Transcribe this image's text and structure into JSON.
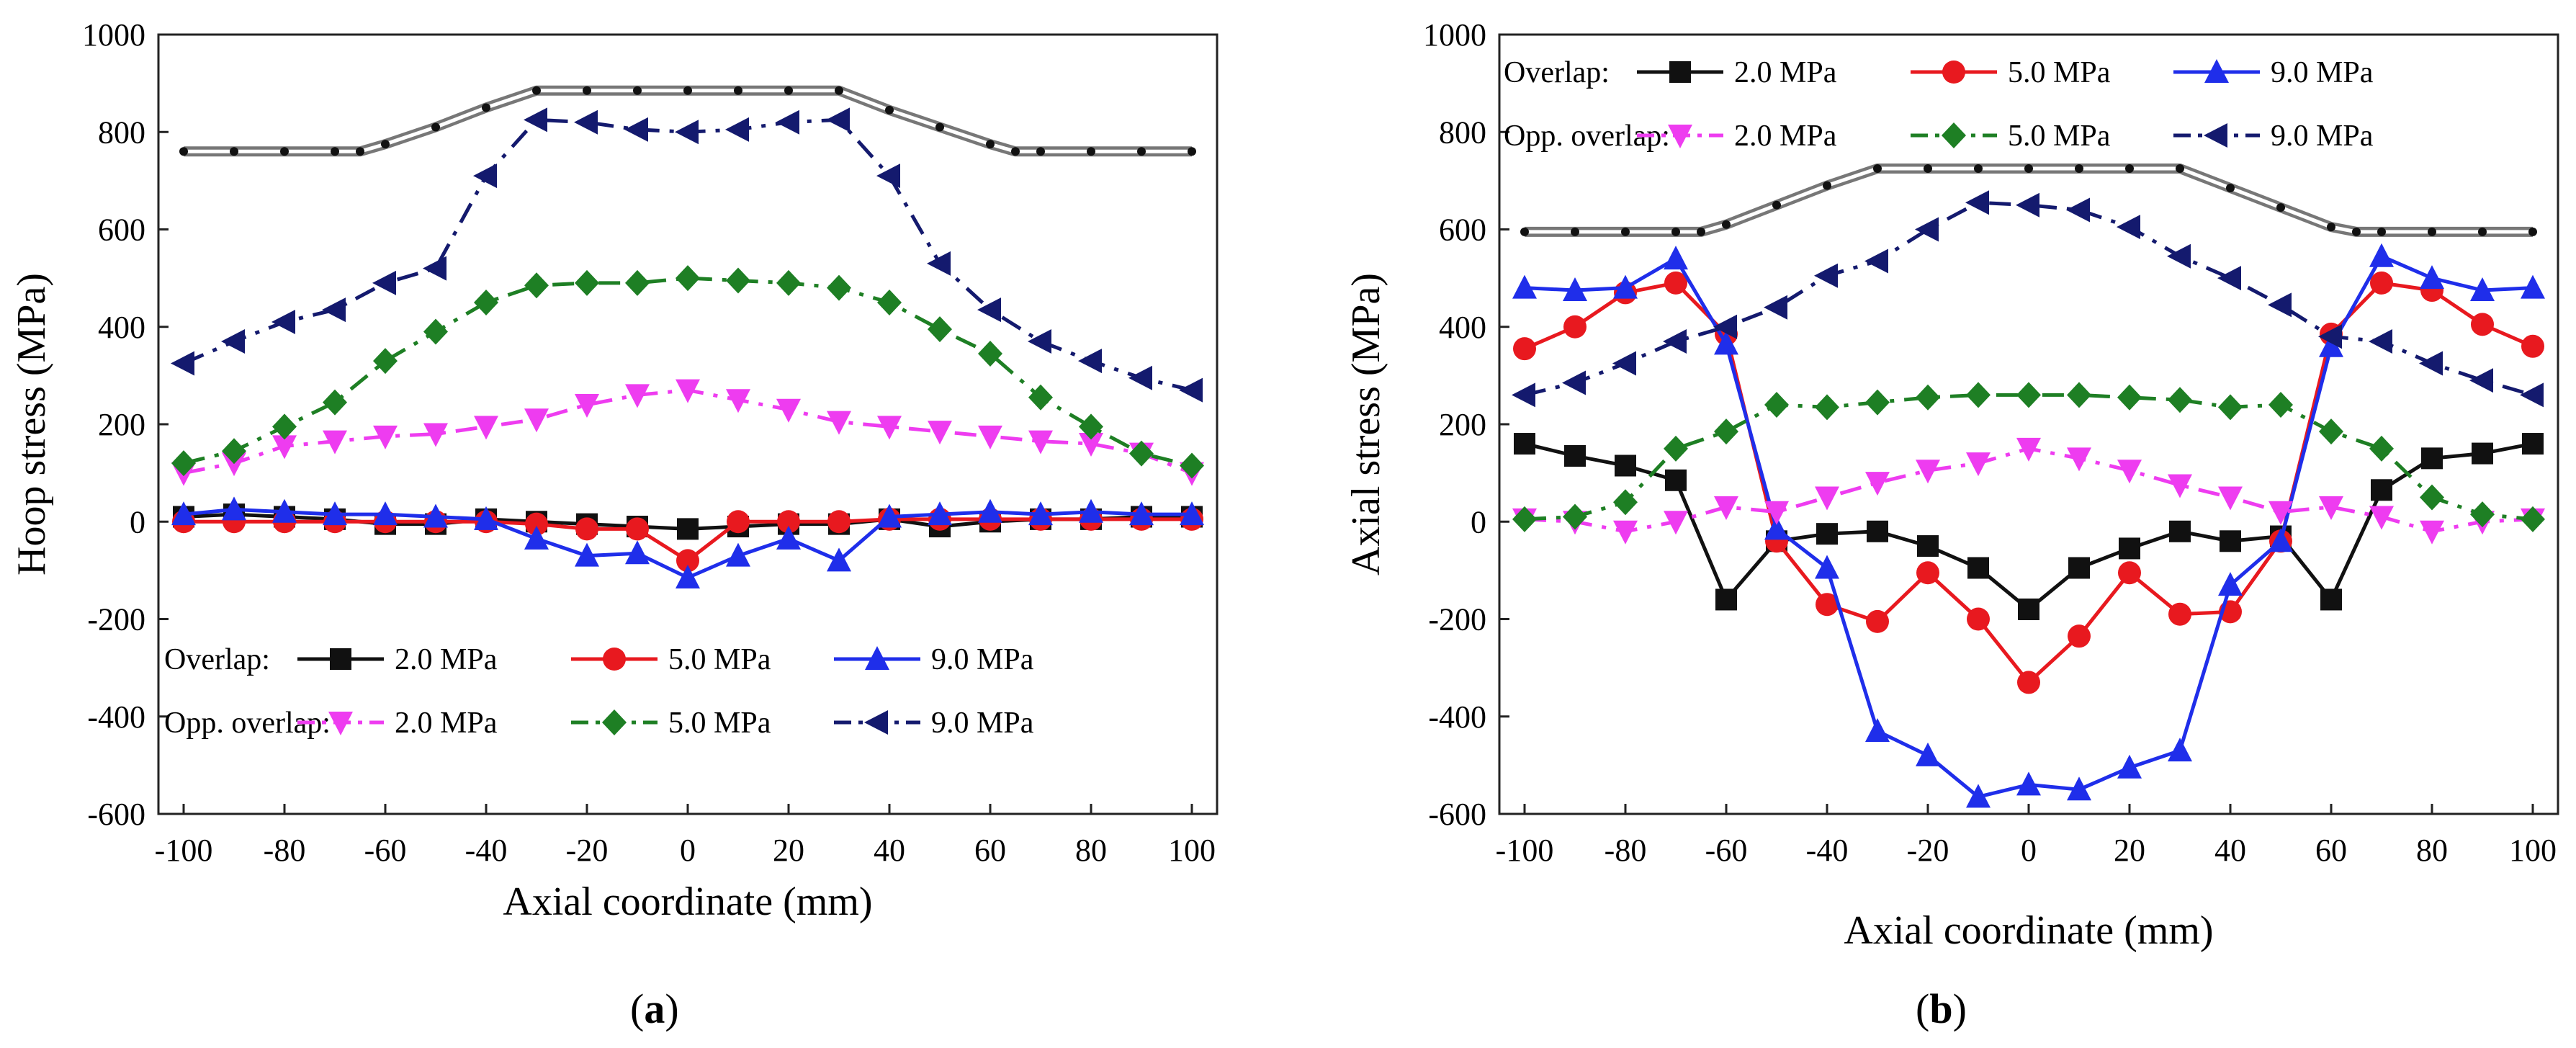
{
  "captions": [
    {
      "open": "(",
      "letter": "a",
      "close": ")"
    },
    {
      "open": "(",
      "letter": "b",
      "close": ")"
    }
  ],
  "legend_groups": {
    "overlap": "Overlap:",
    "opp": "Opp. overlap:"
  },
  "chart_data": [
    {
      "type": "line",
      "id": "a",
      "xlabel": "Axial coordinate (mm)",
      "ylabel": "Hoop stress (MPa)",
      "xlim": [
        -105,
        105
      ],
      "ylim": [
        -600,
        1000
      ],
      "xticks": [
        -100,
        -80,
        -60,
        -40,
        -20,
        0,
        20,
        40,
        60,
        80,
        100
      ],
      "yticks": [
        -600,
        -400,
        -200,
        0,
        200,
        400,
        600,
        800,
        1000
      ],
      "profile": {
        "x": [
          -100,
          -90,
          -80,
          -70,
          -65,
          -60,
          -50,
          -40,
          -30,
          -20,
          -10,
          0,
          10,
          20,
          30,
          40,
          50,
          60,
          65,
          70,
          80,
          90,
          100
        ],
        "y": [
          760,
          760,
          760,
          760,
          760,
          775,
          810,
          850,
          885,
          885,
          885,
          885,
          885,
          885,
          885,
          845,
          810,
          775,
          760,
          760,
          760,
          760,
          760
        ]
      },
      "series": [
        {
          "group": "overlap",
          "name": "2.0 MPa",
          "color": "#111111",
          "marker": "square",
          "dash": "solid",
          "x": [
            -100,
            -90,
            -80,
            -70,
            -60,
            -50,
            -40,
            -30,
            -20,
            -10,
            0,
            10,
            20,
            30,
            40,
            50,
            60,
            70,
            80,
            90,
            100
          ],
          "y": [
            10,
            15,
            10,
            5,
            -5,
            -5,
            5,
            0,
            -5,
            -10,
            -15,
            -10,
            -5,
            -5,
            5,
            -10,
            0,
            5,
            5,
            10,
            10
          ]
        },
        {
          "group": "overlap",
          "name": "5.0 MPa",
          "color": "#e8191f",
          "marker": "circle",
          "dash": "solid",
          "x": [
            -100,
            -90,
            -80,
            -70,
            -60,
            -50,
            -40,
            -30,
            -20,
            -10,
            0,
            10,
            20,
            30,
            40,
            50,
            60,
            70,
            80,
            90,
            100
          ],
          "y": [
            0,
            0,
            0,
            0,
            0,
            0,
            0,
            -5,
            -15,
            -15,
            -80,
            0,
            0,
            0,
            5,
            5,
            5,
            5,
            5,
            5,
            5
          ]
        },
        {
          "group": "overlap",
          "name": "9.0 MPa",
          "color": "#1f2eea",
          "marker": "triangle",
          "dash": "solid",
          "x": [
            -100,
            -90,
            -80,
            -70,
            -60,
            -50,
            -40,
            -30,
            -20,
            -10,
            0,
            10,
            20,
            30,
            40,
            50,
            60,
            70,
            80,
            90,
            100
          ],
          "y": [
            15,
            25,
            20,
            15,
            15,
            10,
            5,
            -35,
            -70,
            -65,
            -115,
            -70,
            -35,
            -80,
            10,
            15,
            20,
            15,
            20,
            15,
            15
          ]
        },
        {
          "group": "opp",
          "name": "2.0 MPa",
          "color": "#ee3cf0",
          "marker": "tri_down",
          "dash": "dashdot",
          "x": [
            -100,
            -90,
            -80,
            -70,
            -60,
            -50,
            -40,
            -30,
            -20,
            -10,
            0,
            10,
            20,
            30,
            40,
            50,
            60,
            70,
            80,
            90,
            100
          ],
          "y": [
            100,
            120,
            155,
            165,
            175,
            180,
            195,
            210,
            240,
            260,
            270,
            250,
            230,
            205,
            195,
            185,
            175,
            165,
            160,
            140,
            100
          ]
        },
        {
          "group": "opp",
          "name": "5.0 MPa",
          "color": "#1e7f24",
          "marker": "diamond",
          "dash": "dashdot",
          "x": [
            -100,
            -90,
            -80,
            -70,
            -60,
            -50,
            -40,
            -30,
            -20,
            -10,
            0,
            10,
            20,
            30,
            40,
            50,
            60,
            70,
            80,
            90,
            100
          ],
          "y": [
            120,
            145,
            195,
            245,
            330,
            390,
            450,
            485,
            490,
            490,
            500,
            495,
            490,
            480,
            450,
            395,
            345,
            255,
            195,
            140,
            115
          ]
        },
        {
          "group": "opp",
          "name": "9.0 MPa",
          "color": "#141a6e",
          "marker": "tri_left",
          "dash": "dashdot",
          "x": [
            -100,
            -90,
            -80,
            -70,
            -60,
            -50,
            -40,
            -30,
            -20,
            -10,
            0,
            10,
            20,
            30,
            40,
            50,
            60,
            70,
            80,
            90,
            100
          ],
          "y": [
            325,
            370,
            410,
            435,
            490,
            520,
            710,
            825,
            820,
            805,
            800,
            805,
            820,
            825,
            710,
            530,
            435,
            370,
            330,
            295,
            270
          ]
        }
      ]
    },
    {
      "type": "line",
      "id": "b",
      "xlabel": "Axial coordinate (mm)",
      "ylabel": "Axial stress (MPa)",
      "xlim": [
        -105,
        105
      ],
      "ylim": [
        -600,
        1000
      ],
      "xticks": [
        -100,
        -80,
        -60,
        -40,
        -20,
        0,
        20,
        40,
        60,
        80,
        100
      ],
      "yticks": [
        -600,
        -400,
        -200,
        0,
        200,
        400,
        600,
        800,
        1000
      ],
      "profile": {
        "x": [
          -100,
          -90,
          -80,
          -70,
          -65,
          -60,
          -50,
          -40,
          -30,
          -20,
          -10,
          0,
          10,
          20,
          30,
          40,
          50,
          60,
          65,
          70,
          80,
          90,
          100
        ],
        "y": [
          595,
          595,
          595,
          595,
          595,
          610,
          650,
          690,
          725,
          725,
          725,
          725,
          725,
          725,
          725,
          685,
          645,
          605,
          595,
          595,
          595,
          595,
          595
        ]
      },
      "series": [
        {
          "group": "overlap",
          "name": "2.0 MPa",
          "color": "#111111",
          "marker": "square",
          "dash": "solid",
          "x": [
            -100,
            -90,
            -80,
            -70,
            -60,
            -50,
            -40,
            -30,
            -20,
            -10,
            0,
            10,
            20,
            30,
            40,
            50,
            60,
            70,
            80,
            90,
            100
          ],
          "y": [
            160,
            135,
            115,
            85,
            -160,
            -40,
            -25,
            -20,
            -50,
            -95,
            -180,
            -95,
            -55,
            -20,
            -40,
            -30,
            -160,
            65,
            130,
            140,
            160
          ]
        },
        {
          "group": "overlap",
          "name": "5.0 MPa",
          "color": "#e8191f",
          "marker": "circle",
          "dash": "solid",
          "x": [
            -100,
            -90,
            -80,
            -70,
            -60,
            -50,
            -40,
            -30,
            -20,
            -10,
            0,
            10,
            20,
            30,
            40,
            50,
            60,
            70,
            80,
            90,
            100
          ],
          "y": [
            355,
            400,
            470,
            490,
            385,
            -40,
            -170,
            -205,
            -105,
            -200,
            -330,
            -235,
            -105,
            -190,
            -185,
            -40,
            385,
            490,
            475,
            405,
            360
          ]
        },
        {
          "group": "overlap",
          "name": "9.0 MPa",
          "color": "#1f2eea",
          "marker": "triangle",
          "dash": "solid",
          "x": [
            -100,
            -90,
            -80,
            -70,
            -60,
            -50,
            -40,
            -30,
            -20,
            -10,
            0,
            10,
            20,
            30,
            40,
            50,
            60,
            70,
            80,
            90,
            100
          ],
          "y": [
            480,
            475,
            480,
            540,
            365,
            -15,
            -95,
            -430,
            -480,
            -565,
            -540,
            -550,
            -505,
            -470,
            -130,
            -40,
            360,
            545,
            500,
            475,
            480
          ]
        },
        {
          "group": "opp",
          "name": "2.0 MPa",
          "color": "#ee3cf0",
          "marker": "tri_down",
          "dash": "dashdot",
          "x": [
            -100,
            -90,
            -80,
            -70,
            -60,
            -50,
            -40,
            -30,
            -20,
            -10,
            0,
            10,
            20,
            30,
            40,
            50,
            60,
            70,
            80,
            90,
            100
          ],
          "y": [
            5,
            0,
            -20,
            0,
            30,
            20,
            50,
            80,
            105,
            120,
            150,
            130,
            105,
            75,
            50,
            20,
            30,
            10,
            -20,
            0,
            5
          ]
        },
        {
          "group": "opp",
          "name": "5.0 MPa",
          "color": "#1e7f24",
          "marker": "diamond",
          "dash": "dashdot",
          "x": [
            -100,
            -90,
            -80,
            -70,
            -60,
            -50,
            -40,
            -30,
            -20,
            -10,
            0,
            10,
            20,
            30,
            40,
            50,
            60,
            70,
            80,
            90,
            100
          ],
          "y": [
            5,
            10,
            40,
            150,
            185,
            240,
            235,
            245,
            255,
            260,
            260,
            260,
            255,
            250,
            235,
            240,
            185,
            150,
            50,
            15,
            5
          ]
        },
        {
          "group": "opp",
          "name": "9.0 MPa",
          "color": "#141a6e",
          "marker": "tri_left",
          "dash": "dashdot",
          "x": [
            -100,
            -90,
            -80,
            -70,
            -60,
            -50,
            -40,
            -30,
            -20,
            -10,
            0,
            10,
            20,
            30,
            40,
            50,
            60,
            70,
            80,
            90,
            100
          ],
          "y": [
            260,
            285,
            325,
            370,
            400,
            440,
            505,
            535,
            600,
            655,
            650,
            640,
            605,
            545,
            500,
            445,
            380,
            370,
            325,
            290,
            260
          ]
        }
      ]
    }
  ]
}
